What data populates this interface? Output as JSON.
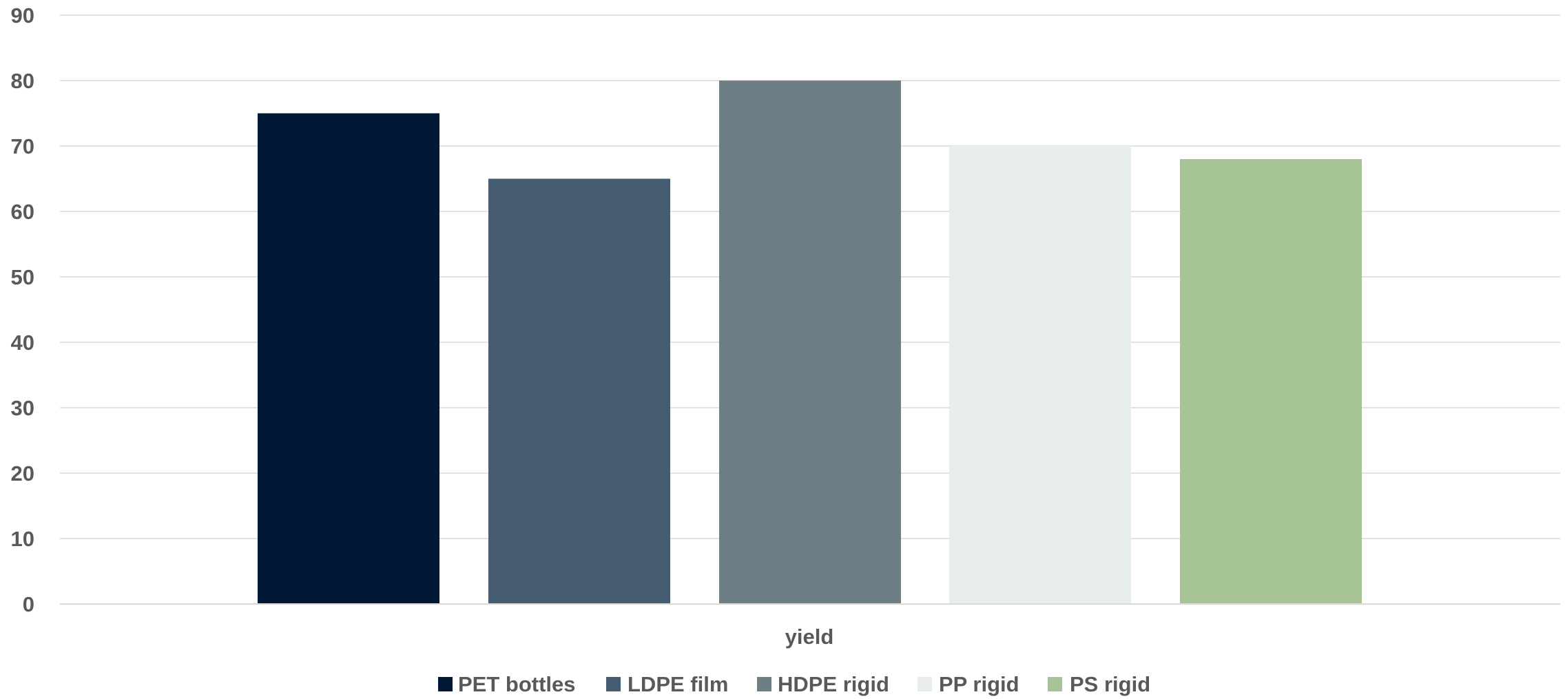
{
  "chart_data": {
    "type": "bar",
    "title": "",
    "xlabel": "",
    "ylabel": "",
    "categories": [
      "yield"
    ],
    "series": [
      {
        "name": "PET bottles",
        "values": [
          75
        ],
        "color": "#011936"
      },
      {
        "name": "LDPE film",
        "values": [
          65
        ],
        "color": "#465C71"
      },
      {
        "name": "HDPE rigid",
        "values": [
          80
        ],
        "color": "#6D7F85"
      },
      {
        "name": "PP rigid",
        "values": [
          70
        ],
        "color": "#E8EEEC"
      },
      {
        "name": "PS rigid",
        "values": [
          68
        ],
        "color": "#A7C496"
      }
    ],
    "ylim": [
      0,
      90
    ],
    "yticks": [
      0,
      10,
      20,
      30,
      40,
      50,
      60,
      70,
      80,
      90
    ],
    "grid": true,
    "grid_color": "#D9D9D9",
    "text_color": "#595959",
    "legend_position": "bottom"
  }
}
